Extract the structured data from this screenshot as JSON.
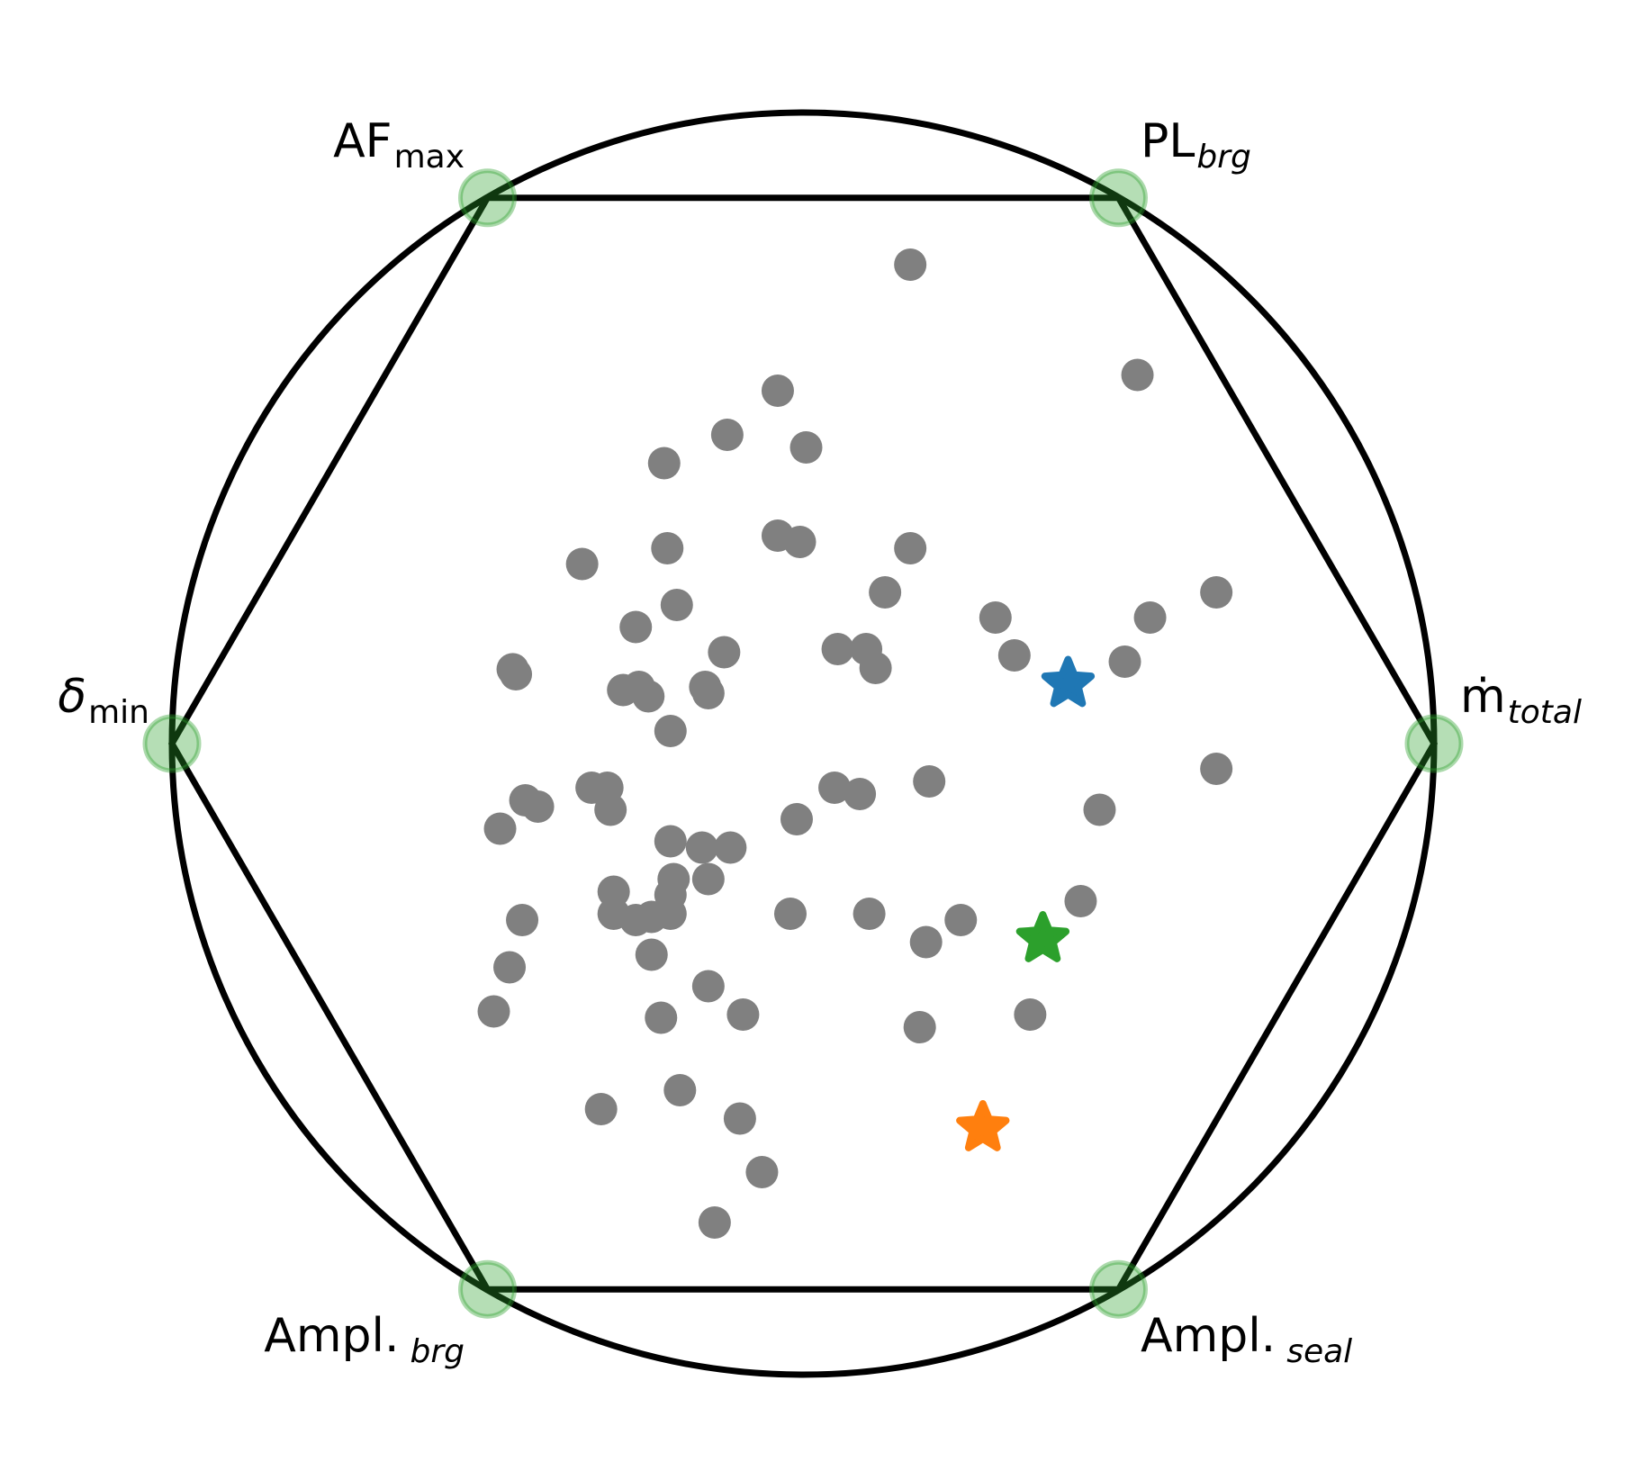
{
  "chart_data": {
    "type": "scatter",
    "title": "",
    "xlim": [
      -1,
      1
    ],
    "ylim": [
      -1,
      1
    ],
    "grid": false,
    "anchor_color": "#2ca02c",
    "point_color": "#808080",
    "anchors": [
      {
        "label_main": "ṁ",
        "label_sub": "total",
        "sub_style": "italic",
        "x": 1.0,
        "y": 0.0
      },
      {
        "label_main": "PL",
        "label_sub": "brg",
        "sub_style": "italic",
        "x": 0.5,
        "y": 0.866
      },
      {
        "label_main": "AF",
        "label_sub": "max",
        "sub_style": "normal",
        "x": -0.5,
        "y": 0.866
      },
      {
        "label_main": "δ",
        "label_sub": "min",
        "sub_style": "normal",
        "x": -1.0,
        "y": 0.0
      },
      {
        "label_main": "Ampl.",
        "label_sub": "brg",
        "sub_style": "italic",
        "x": -0.5,
        "y": -0.866
      },
      {
        "label_main": "Ampl.",
        "label_sub": "seal",
        "sub_style": "italic",
        "x": 0.5,
        "y": -0.866
      }
    ],
    "highlighted": [
      {
        "color": "#1f77b4",
        "x": 0.42,
        "y": 0.095
      },
      {
        "color": "#2ca02c",
        "x": 0.38,
        "y": -0.31
      },
      {
        "color": "#ff7f0e",
        "x": 0.285,
        "y": -0.61
      }
    ],
    "points": [
      [
        0.17,
        0.76
      ],
      [
        0.53,
        0.585
      ],
      [
        -0.04,
        0.56
      ],
      [
        -0.12,
        0.49
      ],
      [
        0.005,
        0.47
      ],
      [
        -0.22,
        0.445
      ],
      [
        -0.04,
        0.33
      ],
      [
        -0.005,
        0.32
      ],
      [
        0.17,
        0.31
      ],
      [
        -0.35,
        0.285
      ],
      [
        -0.215,
        0.31
      ],
      [
        0.13,
        0.24
      ],
      [
        -0.2,
        0.22
      ],
      [
        0.305,
        0.2
      ],
      [
        0.655,
        0.24
      ],
      [
        0.55,
        0.2
      ],
      [
        -0.265,
        0.185
      ],
      [
        -0.125,
        0.145
      ],
      [
        0.055,
        0.15
      ],
      [
        0.1,
        0.15
      ],
      [
        0.335,
        0.14
      ],
      [
        0.115,
        0.12
      ],
      [
        0.51,
        0.13
      ],
      [
        -0.46,
        0.118
      ],
      [
        -0.455,
        0.11
      ],
      [
        -0.285,
        0.085
      ],
      [
        -0.26,
        0.09
      ],
      [
        -0.245,
        0.075
      ],
      [
        -0.155,
        0.09
      ],
      [
        -0.15,
        0.08
      ],
      [
        -0.21,
        0.02
      ],
      [
        -0.335,
        -0.07
      ],
      [
        -0.31,
        -0.07
      ],
      [
        -0.305,
        -0.105
      ],
      [
        -0.44,
        -0.09
      ],
      [
        -0.42,
        -0.1
      ],
      [
        0.05,
        -0.07
      ],
      [
        0.09,
        -0.08
      ],
      [
        0.2,
        -0.06
      ],
      [
        0.655,
        -0.04
      ],
      [
        0.47,
        -0.105
      ],
      [
        -0.48,
        -0.135
      ],
      [
        -0.01,
        -0.12
      ],
      [
        -0.21,
        -0.155
      ],
      [
        -0.16,
        -0.165
      ],
      [
        -0.115,
        -0.165
      ],
      [
        -0.3,
        -0.235
      ],
      [
        -0.205,
        -0.215
      ],
      [
        -0.21,
        -0.24
      ],
      [
        -0.15,
        -0.215
      ],
      [
        -0.3,
        -0.27
      ],
      [
        -0.265,
        -0.28
      ],
      [
        -0.24,
        -0.275
      ],
      [
        -0.21,
        -0.27
      ],
      [
        -0.445,
        -0.28
      ],
      [
        -0.02,
        -0.27
      ],
      [
        0.105,
        -0.27
      ],
      [
        0.25,
        -0.28
      ],
      [
        0.195,
        -0.315
      ],
      [
        0.44,
        -0.25
      ],
      [
        -0.24,
        -0.335
      ],
      [
        -0.465,
        -0.355
      ],
      [
        -0.15,
        -0.385
      ],
      [
        -0.225,
        -0.435
      ],
      [
        -0.095,
        -0.43
      ],
      [
        -0.49,
        -0.425
      ],
      [
        0.185,
        -0.45
      ],
      [
        0.36,
        -0.43
      ],
      [
        -0.195,
        -0.55
      ],
      [
        -0.32,
        -0.58
      ],
      [
        -0.1,
        -0.595
      ],
      [
        -0.065,
        -0.68
      ],
      [
        -0.14,
        -0.76
      ]
    ]
  }
}
